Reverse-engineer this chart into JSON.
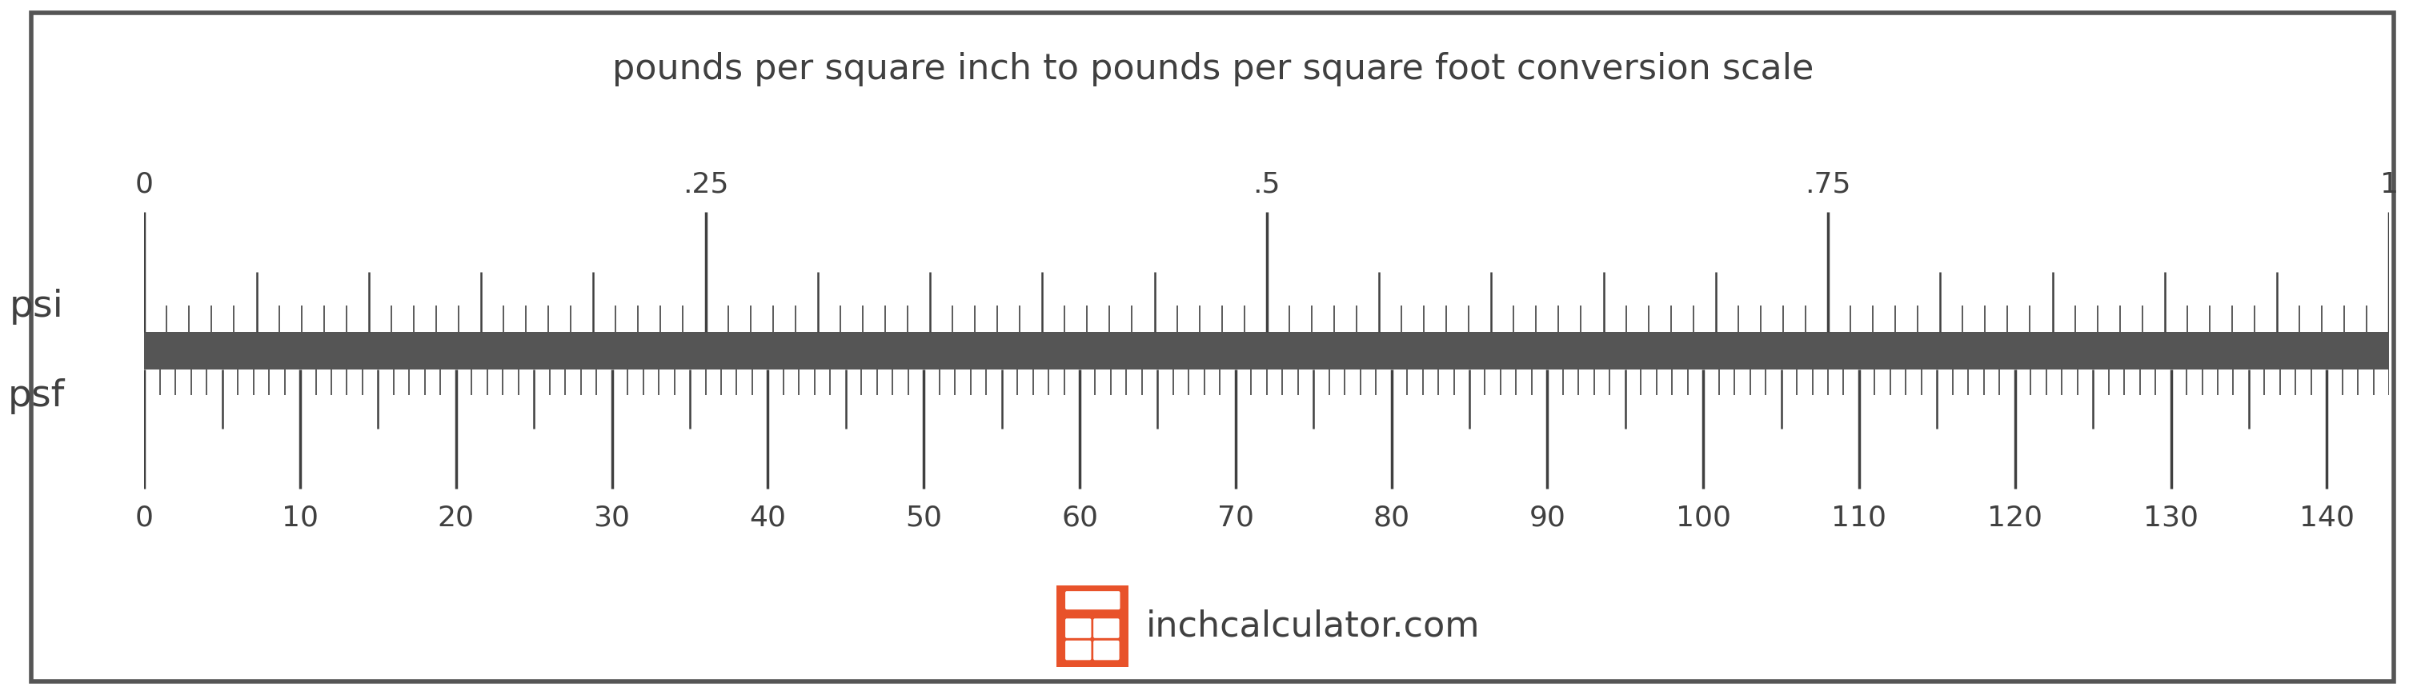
{
  "title": "pounds per square inch to pounds per square foot conversion scale",
  "title_fontsize": 32,
  "title_color": "#404040",
  "background_color": "#ffffff",
  "border_color": "#555555",
  "ruler_bar_color": "#555555",
  "psi_label": "psi",
  "psf_label": "psf",
  "label_fontsize": 34,
  "label_color": "#404040",
  "psi_ticks_major": [
    0,
    0.25,
    0.5,
    0.75,
    1.0
  ],
  "psi_tick_labels": [
    "0",
    ".25",
    ".5",
    ".75",
    "1"
  ],
  "psi_range": [
    0,
    1.0
  ],
  "psf_ticks_major": [
    0,
    10,
    20,
    30,
    40,
    50,
    60,
    70,
    80,
    90,
    100,
    110,
    120,
    130,
    140
  ],
  "psf_range": [
    0,
    144
  ],
  "tick_color": "#404040",
  "tick_label_fontsize": 26,
  "watermark_text": "inchcalculator.com",
  "watermark_color": "#404040",
  "watermark_fontsize": 32,
  "logo_color": "#e8522a"
}
